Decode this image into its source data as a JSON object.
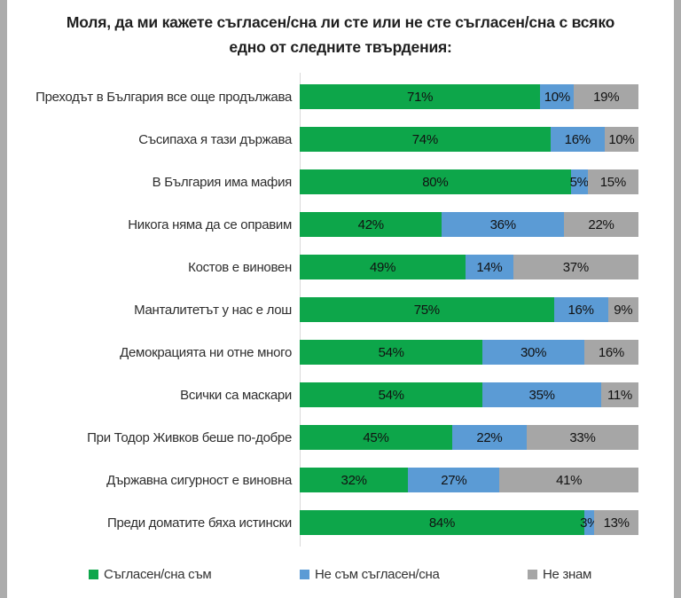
{
  "chart_data": {
    "type": "bar",
    "stacked": true,
    "orientation": "horizontal",
    "title": "Моля, да ми кажете съгласен/сна ли сте или не сте съгласен/сна с всяко едно от следните твърдения:",
    "categories": [
      "Преходът в България все още продължава",
      "Съсипаха я тази държава",
      "В България има мафия",
      "Никога няма да се оправим",
      "Костов е виновен",
      "Манталитетът у нас е лош",
      "Демокрацията ни отне много",
      "Всички са маскари",
      "При Тодор Живков беше по-добре",
      "Държавна сигурност е виновна",
      "Преди доматите бяха истински"
    ],
    "series": [
      {
        "name": "Съгласен/сна съм",
        "key": "agree",
        "color": "#0DA64A",
        "values": [
          71,
          74,
          80,
          42,
          49,
          75,
          54,
          54,
          45,
          32,
          84
        ]
      },
      {
        "name": "Не съм съгласен/сна",
        "key": "disagree",
        "color": "#5B9BD5",
        "values": [
          10,
          16,
          5,
          36,
          14,
          16,
          30,
          35,
          22,
          27,
          3
        ]
      },
      {
        "name": "Не знам",
        "key": "dontknow",
        "color": "#A6A6A6",
        "values": [
          19,
          10,
          15,
          22,
          37,
          9,
          16,
          11,
          33,
          41,
          13
        ]
      }
    ],
    "xlim": [
      0,
      100
    ],
    "value_label_format": "{value}%",
    "value_labels": "inside-center",
    "legend_position": "bottom",
    "grid": false,
    "axis_line_color": "#D9D9D9",
    "frame_color": "#ACACAC"
  }
}
